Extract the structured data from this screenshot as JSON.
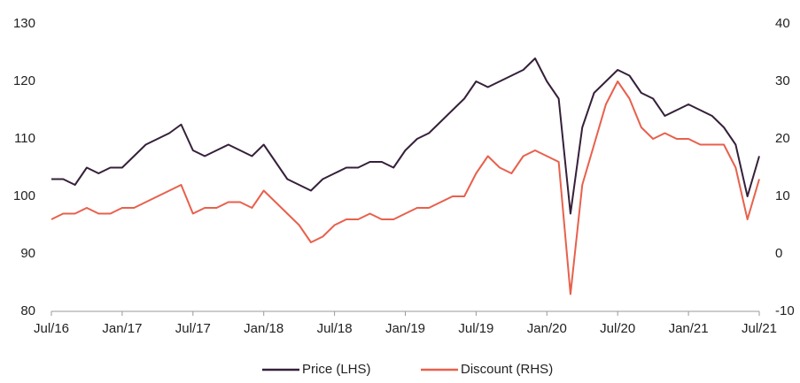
{
  "chart_data": {
    "type": "line",
    "categories": [
      "Jul/16",
      null,
      null,
      null,
      null,
      null,
      "Jan/17",
      null,
      null,
      null,
      null,
      null,
      "Jul/17",
      null,
      null,
      null,
      null,
      null,
      "Jan/18",
      null,
      null,
      null,
      null,
      null,
      "Jul/18",
      null,
      null,
      null,
      null,
      null,
      "Jan/19",
      null,
      null,
      null,
      null,
      null,
      "Jul/19",
      null,
      null,
      null,
      null,
      null,
      "Jan/20",
      null,
      null,
      null,
      null,
      null,
      "Jul/20",
      null,
      null,
      null,
      null,
      null,
      "Jan/21",
      null,
      null,
      null,
      null,
      null,
      "Jul/21"
    ],
    "series": [
      {
        "name": "Price (LHS)",
        "color": "#35203a",
        "values": [
          103,
          103,
          102,
          105,
          104,
          105,
          105,
          107,
          109,
          110,
          111,
          112.5,
          108,
          107,
          108,
          109,
          108,
          107,
          109,
          106,
          103,
          102,
          101,
          103,
          104,
          105,
          105,
          106,
          106,
          105,
          108,
          110,
          111,
          113,
          115,
          117,
          120,
          119,
          120,
          121,
          122,
          124,
          120,
          117,
          97,
          112,
          118,
          120,
          122,
          121,
          118,
          117,
          114,
          115,
          116,
          115,
          114,
          112,
          109,
          100,
          107
        ]
      },
      {
        "name": "Discount (RHS)",
        "color": "#e8604c",
        "axis": "y2",
        "values": [
          6,
          7,
          7,
          8,
          7,
          7,
          8,
          8,
          9,
          10,
          11,
          12,
          7,
          8,
          8,
          9,
          9,
          8,
          11,
          9,
          7,
          5,
          2,
          3,
          5,
          6,
          6,
          7,
          6,
          6,
          7,
          8,
          8,
          9,
          10,
          10,
          14,
          17,
          15,
          14,
          17,
          18,
          17,
          16,
          -7,
          12,
          19,
          26,
          30,
          27,
          22,
          20,
          21,
          20,
          20,
          19,
          19,
          19,
          15,
          6,
          13
        ]
      }
    ],
    "ylim": [
      80,
      130
    ],
    "yticks": [
      80,
      90,
      100,
      110,
      120,
      130
    ],
    "y2lim": [
      -10,
      40
    ],
    "y2ticks": [
      -10,
      0,
      10,
      20,
      30,
      40
    ],
    "legend": "bottom"
  }
}
